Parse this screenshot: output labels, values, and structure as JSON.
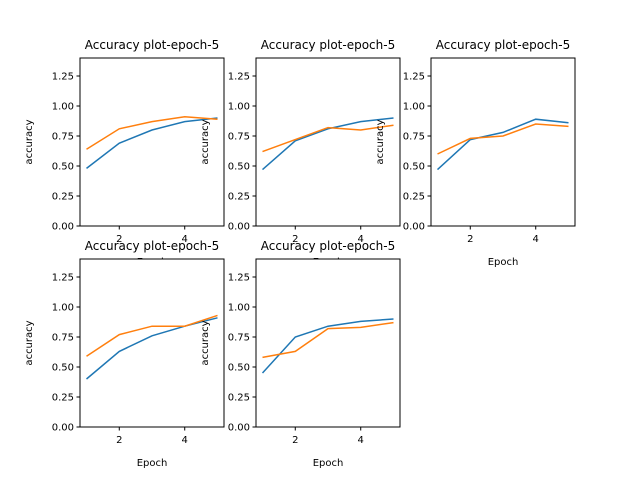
{
  "chart_data": [
    {
      "type": "line",
      "title": "Accuracy plot-epoch-5",
      "xlabel": "Epoch",
      "ylabel": "accuracy",
      "x": [
        1,
        2,
        3,
        4,
        5
      ],
      "xticks": [
        2,
        4
      ],
      "yticks": [
        0.0,
        0.25,
        0.5,
        0.75,
        1.0,
        1.25
      ],
      "ylim": [
        0,
        1.4
      ],
      "grid": false,
      "series": [
        {
          "color": "#1f77b4",
          "values": [
            0.48,
            0.69,
            0.8,
            0.87,
            0.9
          ]
        },
        {
          "color": "#ff7f0e",
          "values": [
            0.64,
            0.81,
            0.87,
            0.91,
            0.89
          ]
        }
      ]
    },
    {
      "type": "line",
      "title": "Accuracy plot-epoch-5",
      "xlabel": "Epoch",
      "ylabel": "accuracy",
      "x": [
        1,
        2,
        3,
        4,
        5
      ],
      "xticks": [
        2,
        4
      ],
      "yticks": [
        0.0,
        0.25,
        0.5,
        0.75,
        1.0,
        1.25
      ],
      "ylim": [
        0,
        1.4
      ],
      "grid": false,
      "series": [
        {
          "color": "#1f77b4",
          "values": [
            0.47,
            0.71,
            0.81,
            0.87,
            0.9
          ]
        },
        {
          "color": "#ff7f0e",
          "values": [
            0.62,
            0.72,
            0.82,
            0.8,
            0.84
          ]
        }
      ]
    },
    {
      "type": "line",
      "title": "Accuracy plot-epoch-5",
      "xlabel": "Epoch",
      "ylabel": "accuracy",
      "x": [
        1,
        2,
        3,
        4,
        5
      ],
      "xticks": [
        2,
        4
      ],
      "yticks": [
        0.0,
        0.25,
        0.5,
        0.75,
        1.0,
        1.25
      ],
      "ylim": [
        0,
        1.4
      ],
      "grid": false,
      "series": [
        {
          "color": "#1f77b4",
          "values": [
            0.47,
            0.72,
            0.78,
            0.89,
            0.86
          ]
        },
        {
          "color": "#ff7f0e",
          "values": [
            0.6,
            0.73,
            0.75,
            0.85,
            0.83
          ]
        }
      ]
    },
    {
      "type": "line",
      "title": "Accuracy plot-epoch-5",
      "xlabel": "Epoch",
      "ylabel": "accuracy",
      "x": [
        1,
        2,
        3,
        4,
        5
      ],
      "xticks": [
        2,
        4
      ],
      "yticks": [
        0.0,
        0.25,
        0.5,
        0.75,
        1.0,
        1.25
      ],
      "ylim": [
        0,
        1.4
      ],
      "grid": false,
      "series": [
        {
          "color": "#1f77b4",
          "values": [
            0.4,
            0.63,
            0.76,
            0.84,
            0.91
          ]
        },
        {
          "color": "#ff7f0e",
          "values": [
            0.59,
            0.77,
            0.84,
            0.84,
            0.93
          ]
        }
      ]
    },
    {
      "type": "line",
      "title": "Accuracy plot-epoch-5",
      "xlabel": "Epoch",
      "ylabel": "accuracy",
      "x": [
        1,
        2,
        3,
        4,
        5
      ],
      "xticks": [
        2,
        4
      ],
      "yticks": [
        0.0,
        0.25,
        0.5,
        0.75,
        1.0,
        1.25
      ],
      "ylim": [
        0,
        1.4
      ],
      "grid": false,
      "series": [
        {
          "color": "#1f77b4",
          "values": [
            0.45,
            0.75,
            0.84,
            0.88,
            0.9
          ]
        },
        {
          "color": "#ff7f0e",
          "values": [
            0.58,
            0.63,
            0.82,
            0.83,
            0.87
          ]
        }
      ]
    }
  ]
}
